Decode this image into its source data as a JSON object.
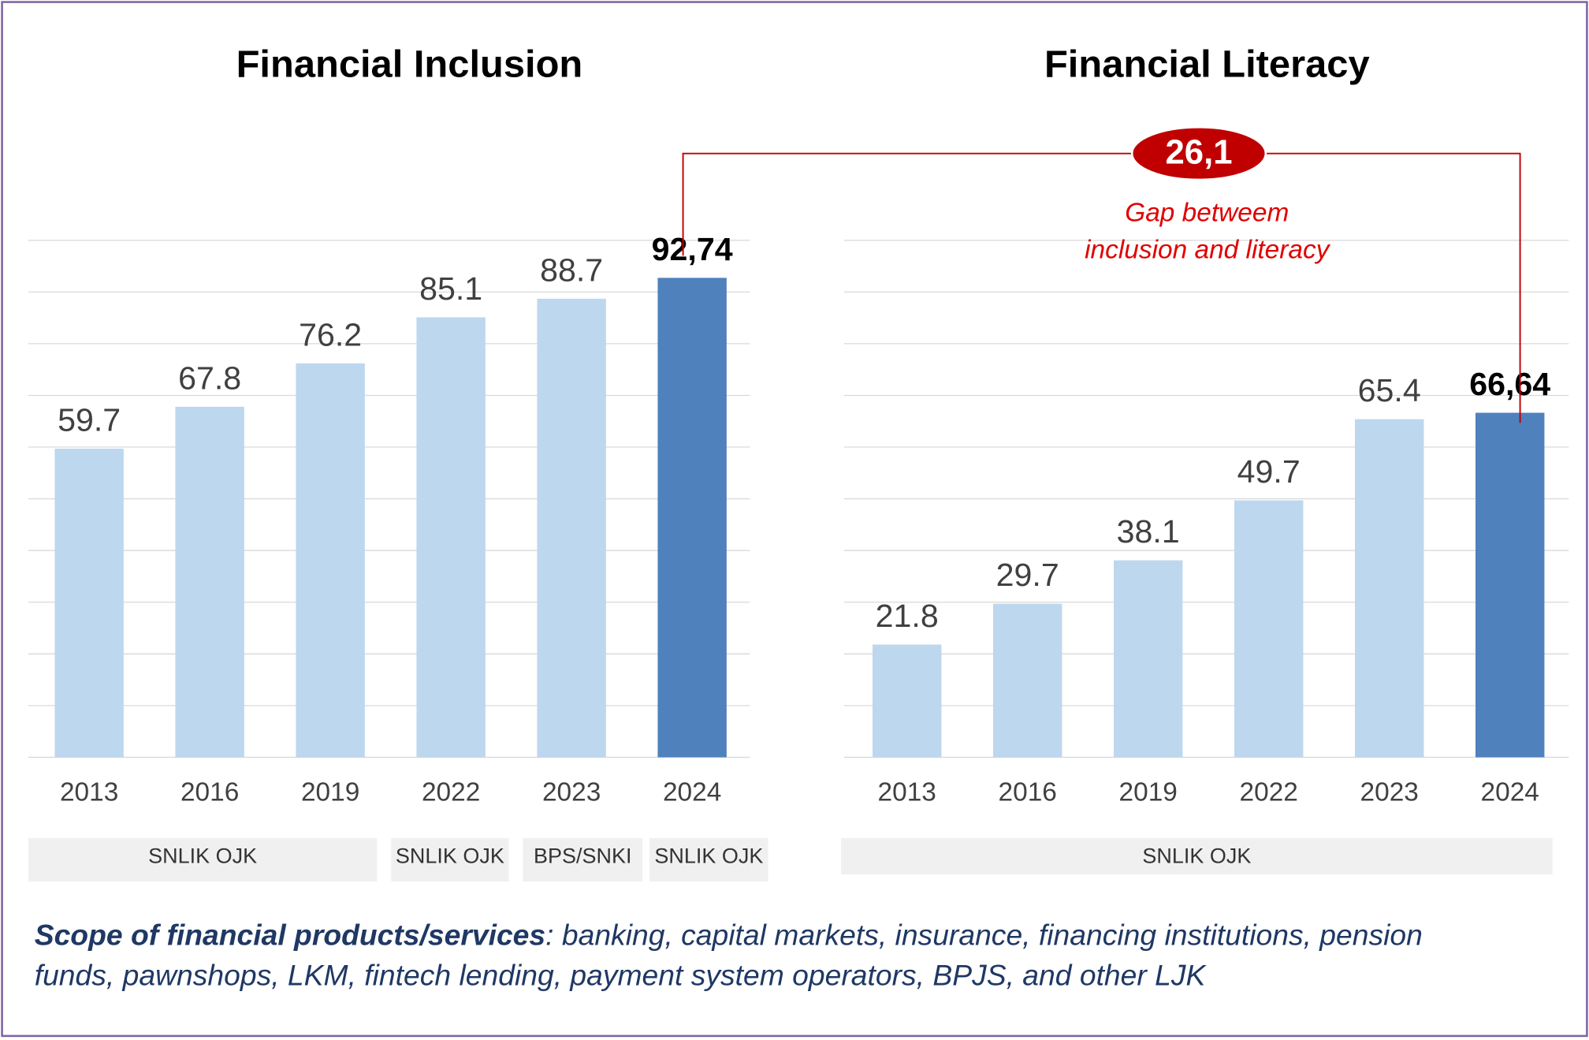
{
  "chart_data": [
    {
      "type": "bar",
      "title": "Financial Inclusion",
      "categories": [
        "2013",
        "2016",
        "2019",
        "2022",
        "2023",
        "2024"
      ],
      "values": [
        59.7,
        67.8,
        76.2,
        85.1,
        88.7,
        92.74
      ],
      "value_labels": [
        "59.7",
        "67.8",
        "76.2",
        "85.1",
        "88.7",
        "92,74"
      ],
      "colors": [
        "#bdd7ee",
        "#bdd7ee",
        "#bdd7ee",
        "#bdd7ee",
        "#bdd7ee",
        "#4f81bd"
      ],
      "ylim": [
        0,
        100
      ],
      "yticks": [
        0,
        10,
        20,
        30,
        40,
        50,
        60,
        70,
        80,
        90,
        100
      ],
      "grid": true,
      "sources": [
        "SNLIK OJK",
        "SNLIK OJK",
        "BPS/SNKI",
        "SNLIK OJK"
      ]
    },
    {
      "type": "bar",
      "title": "Financial Literacy",
      "categories": [
        "2013",
        "2016",
        "2019",
        "2022",
        "2023",
        "2024"
      ],
      "values": [
        21.8,
        29.7,
        38.1,
        49.7,
        65.4,
        66.64
      ],
      "value_labels": [
        "21.8",
        "29.7",
        "38.1",
        "49.7",
        "65.4",
        "66,64"
      ],
      "colors": [
        "#bdd7ee",
        "#bdd7ee",
        "#bdd7ee",
        "#bdd7ee",
        "#bdd7ee",
        "#4f81bd"
      ],
      "ylim": [
        0,
        100
      ],
      "yticks": [
        0,
        10,
        20,
        30,
        40,
        50,
        60,
        70,
        80,
        90,
        100
      ],
      "grid": true,
      "sources": [
        "SNLIK OJK"
      ]
    }
  ],
  "gap": {
    "value": 26.1,
    "label": "26,1",
    "text": [
      "Gap betweem",
      "inclusion and literacy"
    ]
  },
  "footnote": {
    "bold": "Scope of financial products/services",
    "line1": ": banking, capital markets, insurance, financing institutions, pension",
    "line2": "funds, pawnshops, LKM, fintech lending, payment system operators, BPJS, and other LJK"
  }
}
